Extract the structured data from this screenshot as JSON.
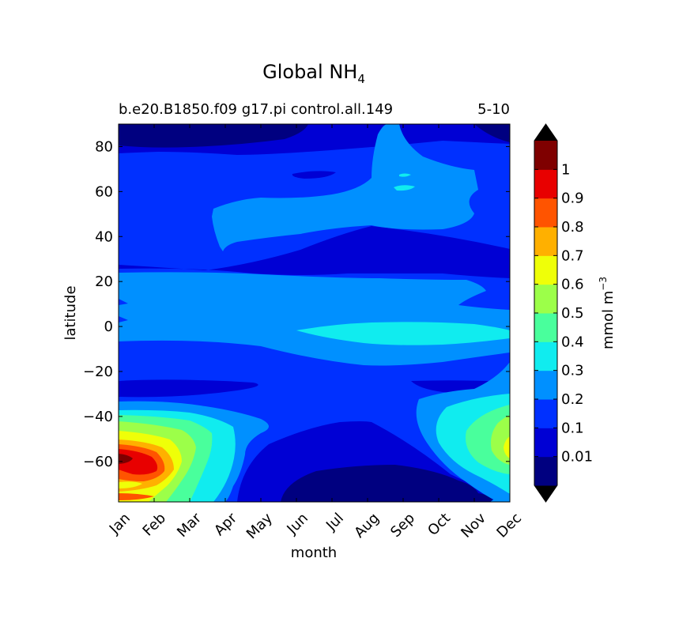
{
  "chart_data": {
    "type": "heatmap",
    "title_main": "Global NH",
    "title_sub": "4",
    "subtitle_left": "b.e20.B1850.f09 g17.pi control.all.149",
    "subtitle_right": "5-10",
    "xlabel": "month",
    "ylabel": "latitude",
    "x_categories": [
      "Jan",
      "Feb",
      "Mar",
      "Apr",
      "May",
      "Jun",
      "Jul",
      "Aug",
      "Sep",
      "Oct",
      "Nov",
      "Dec"
    ],
    "ylim": [
      -78,
      90
    ],
    "y_ticks": [
      -60,
      -40,
      -20,
      0,
      20,
      40,
      60,
      80
    ],
    "colorbar": {
      "label": "mmol m",
      "label_exp": "−3",
      "extend": "both",
      "levels": [
        0,
        0.01,
        0.1,
        0.2,
        0.3,
        0.4,
        0.5,
        0.6,
        0.7,
        0.8,
        0.9,
        1.0,
        1.1
      ],
      "tick_labels": [
        "0.01",
        "0.1",
        "0.2",
        "0.3",
        "0.4",
        "0.5",
        "0.6",
        "0.7",
        "0.8",
        "0.9",
        "1"
      ],
      "colors": [
        "#000080",
        "#0000d4",
        "#0030ff",
        "#0090ff",
        "#10ecef",
        "#49ff9c",
        "#9cff49",
        "#efff08",
        "#ffb000",
        "#ff5400",
        "#e80000",
        "#7f0000"
      ],
      "under_color": "#000000",
      "over_color": "#000000"
    },
    "zones": [
      {
        "lat": [
          83,
          90
        ],
        "months": "Jan-Jun, Dec",
        "value_range": "0-0.01"
      },
      {
        "lat": [
          20,
          83
        ],
        "months": "all",
        "value_range": "0.1-0.2"
      },
      {
        "lat": [
          28,
          57
        ],
        "months": "Apr-Dec",
        "value_range": "0.2-0.3"
      },
      {
        "lat": [
          60,
          68
        ],
        "months": "Sep",
        "value_range": "0.3-0.4"
      },
      {
        "lat": [
          0,
          12
        ],
        "months": "all",
        "value_range": "0.2-0.3"
      },
      {
        "lat": [
          -8,
          -2
        ],
        "months": "Jul-Dec",
        "value_range": "0.3-0.4"
      },
      {
        "lat": [
          -38,
          -20
        ],
        "months": "all",
        "value_range": "0.1-0.2"
      },
      {
        "lat": [
          -78,
          -52
        ],
        "months": "Jun-Nov",
        "value_range": "0-0.01"
      },
      {
        "lat": [
          -70,
          -42
        ],
        "months": "Jan-Apr",
        "value_range": "0.3-1.1"
      },
      {
        "lat": [
          -64,
          -58
        ],
        "months": "Jan-Feb",
        "value_range": "0.9-1.1"
      },
      {
        "lat": [
          -62,
          -40
        ],
        "months": "Nov-Dec",
        "value_range": "0.3-0.7"
      }
    ]
  }
}
